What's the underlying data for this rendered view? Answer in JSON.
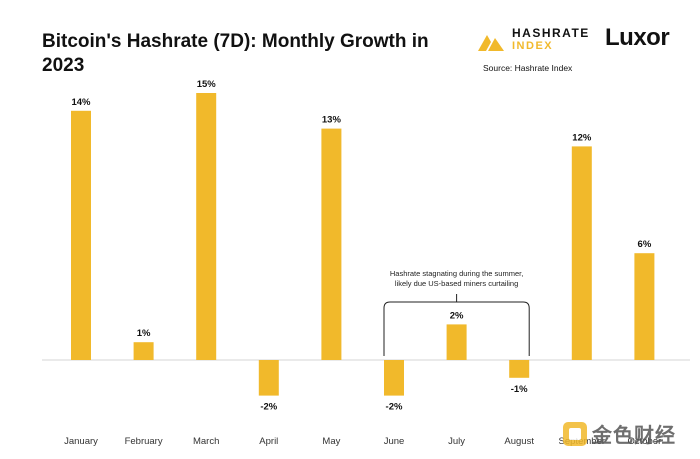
{
  "header": {
    "title": "Bitcoin's Hashrate (7D): Monthly Growth in 2023",
    "source": "Source: Hashrate Index"
  },
  "logos": {
    "hashrate_top": "HASHRATE",
    "hashrate_bottom": "INDEX",
    "luxor": "Luxor",
    "watermark": "金色财经"
  },
  "colors": {
    "bar": "#f1b92b",
    "text": "#111111",
    "accent": "#f1b92b"
  },
  "chart_data": {
    "type": "bar",
    "title": "Bitcoin's Hashrate (7D): Monthly Growth in 2023",
    "categories": [
      "January",
      "February",
      "March",
      "April",
      "May",
      "June",
      "July",
      "August",
      "September",
      "October"
    ],
    "values": [
      14,
      1,
      15,
      -2,
      13,
      -2,
      2,
      -1,
      12,
      6
    ],
    "data_labels": [
      "14%",
      "1%",
      "15%",
      "-2%",
      "13%",
      "-2%",
      "2%",
      "-1%",
      "12%",
      "6%"
    ],
    "ylim": [
      -4,
      16
    ],
    "grid": false,
    "annotation": {
      "text_line1": "Hashrate stagnating during the summer,",
      "text_line2": "likely due US-based miners curtailing",
      "span": [
        "June",
        "August"
      ]
    }
  }
}
